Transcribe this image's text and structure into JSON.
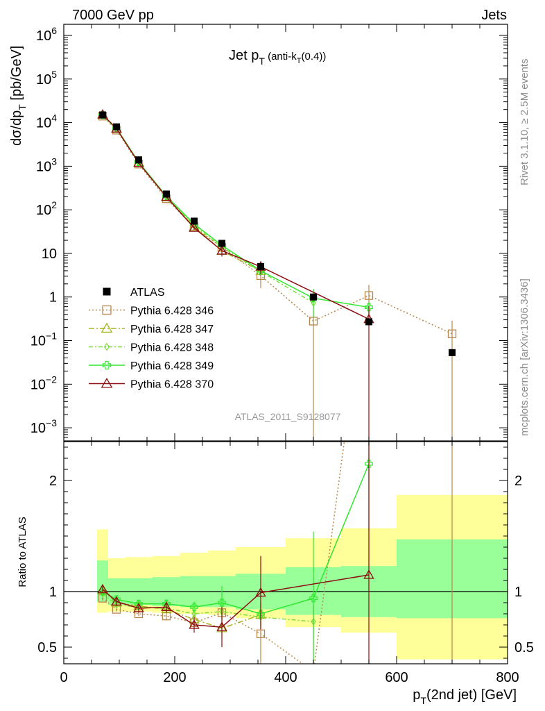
{
  "header": {
    "left": "7000 GeV pp",
    "right": "Jets"
  },
  "side": {
    "rivet": "Rivet 3.1.10, ≥ 2.5M events",
    "mcplots": "mcplots.cern.ch [arXiv:1306.3436]"
  },
  "chart_data": {
    "type": "line",
    "title": {
      "main": "Jet p",
      "sub": "T",
      "paren": " (anti-k",
      "paren_sub": "T",
      "paren_end": "(0.4))"
    },
    "analysis_label": "ATLAS_2011_S9128077",
    "xlabel": {
      "main": "p",
      "sub": "T",
      "rest": "(2nd jet) [GeV]"
    },
    "ylabel_main": {
      "pre": "dσ/dp",
      "sub": "T",
      "post": " [pb/GeV]"
    },
    "ylabel_ratio": "Ratio to ATLAS",
    "x_range": [
      0,
      800
    ],
    "x_ticks": [
      0,
      200,
      400,
      600,
      800
    ],
    "x_tick_labels": [
      "0",
      "200",
      "400",
      "600",
      "800"
    ],
    "main_y_range": [
      0.0005,
      1800000
    ],
    "main_y_scale": "log",
    "main_y_ticks": [
      {
        "value": 0.001,
        "base": "10",
        "exp": "−3"
      },
      {
        "value": 0.01,
        "base": "10",
        "exp": "−2"
      },
      {
        "value": 0.1,
        "base": "10",
        "exp": "−1"
      },
      {
        "value": 1,
        "base": "1",
        "exp": ""
      },
      {
        "value": 10,
        "base": "10",
        "exp": ""
      },
      {
        "value": 100,
        "base": "10",
        "exp": "2"
      },
      {
        "value": 1000,
        "base": "10",
        "exp": "3"
      },
      {
        "value": 10000,
        "base": "10",
        "exp": "4"
      },
      {
        "value": 100000,
        "base": "10",
        "exp": "5"
      },
      {
        "value": 1000000,
        "base": "10",
        "exp": "6"
      }
    ],
    "ratio_y_range": [
      0.35,
      2.35
    ],
    "ratio_y_ticks": [
      0.5,
      1,
      2
    ],
    "ratio_y_tick_labels": [
      "0.5",
      "1",
      "2"
    ],
    "legend_position": "left-middle",
    "data": {
      "name": "ATLAS",
      "x": [
        70,
        95,
        135,
        185,
        235,
        285,
        355,
        450,
        550,
        700
      ],
      "y": [
        15000,
        8000,
        1400,
        230,
        55,
        17,
        5,
        1.0,
        0.27,
        0.053
      ],
      "bins": [
        [
          60,
          80
        ],
        [
          80,
          110
        ],
        [
          110,
          160
        ],
        [
          160,
          210
        ],
        [
          210,
          260
        ],
        [
          260,
          310
        ],
        [
          310,
          400
        ],
        [
          400,
          500
        ],
        [
          500,
          600
        ],
        [
          600,
          800
        ]
      ],
      "band_inner": [
        [
          0.91,
          1.28
        ],
        [
          0.88,
          1.12
        ],
        [
          0.88,
          1.12
        ],
        [
          0.87,
          1.13
        ],
        [
          0.86,
          1.14
        ],
        [
          0.86,
          1.14
        ],
        [
          0.84,
          1.16
        ],
        [
          0.79,
          1.22
        ],
        [
          0.77,
          1.23
        ],
        [
          0.76,
          1.47
        ]
      ],
      "band_outer": [
        [
          0.81,
          1.56
        ],
        [
          0.82,
          1.3
        ],
        [
          0.82,
          1.31
        ],
        [
          0.81,
          1.32
        ],
        [
          0.8,
          1.35
        ],
        [
          0.79,
          1.37
        ],
        [
          0.76,
          1.4
        ],
        [
          0.68,
          1.48
        ],
        [
          0.63,
          1.57
        ],
        [
          0.39,
          1.87
        ]
      ]
    },
    "series": [
      {
        "name": "Pythia 6.428 346",
        "color": "#b8864b",
        "dash": "2,3",
        "marker": "square-open",
        "x": [
          70,
          95,
          135,
          185,
          235,
          285,
          355,
          450,
          550,
          700
        ],
        "ratio": [
          0.94,
          0.84,
          0.8,
          0.78,
          0.72,
          0.81,
          0.62,
          0.28,
          4.0,
          2.7
        ],
        "ratio_err": [
          0.02,
          0.02,
          0.02,
          0.03,
          0.05,
          0.06,
          0.3,
          0.6,
          3.0,
          3.0
        ]
      },
      {
        "name": "Pythia 6.428 347",
        "color": "#a9b520",
        "dash": "8,3,2,3",
        "marker": "triangle-open",
        "x": [
          70,
          95,
          135,
          185,
          235,
          285,
          355
        ],
        "ratio": [
          1.01,
          0.9,
          0.87,
          0.84,
          0.75,
          0.67,
          0.79
        ],
        "ratio_err": [
          0.03,
          0.03,
          0.03,
          0.04,
          0.06,
          0.08,
          0.1
        ]
      },
      {
        "name": "Pythia 6.428 348",
        "color": "#7fdd3a",
        "dash": "6,3,2,3",
        "marker": "diamond-open",
        "x": [
          70,
          95,
          135,
          185,
          235,
          285,
          355,
          450
        ],
        "ratio": [
          0.98,
          0.88,
          0.86,
          0.85,
          0.8,
          0.82,
          0.77,
          0.73
        ],
        "ratio_err": [
          0.03,
          0.03,
          0.03,
          0.04,
          0.05,
          0.07,
          0.1,
          0.15
        ]
      },
      {
        "name": "Pythia 6.428 349",
        "color": "#2ee82e",
        "dash": "",
        "marker": "cross-open",
        "x": [
          70,
          95,
          135,
          185,
          235,
          285,
          355,
          450,
          550
        ],
        "ratio": [
          1.0,
          0.93,
          0.89,
          0.89,
          0.86,
          0.9,
          0.8,
          0.94,
          2.15
        ],
        "ratio_err": [
          0.03,
          0.03,
          0.03,
          0.04,
          0.05,
          0.15,
          0.1,
          0.6,
          0.6
        ]
      },
      {
        "name": "Pythia 6.428 370",
        "color": "#8b0f12",
        "dash": "",
        "marker": "triangle-open",
        "x": [
          70,
          95,
          135,
          185,
          235,
          285,
          355,
          550
        ],
        "ratio": [
          1.02,
          0.91,
          0.85,
          0.86,
          0.7,
          0.68,
          0.99,
          1.15
        ],
        "ratio_err": [
          0.03,
          0.04,
          0.04,
          0.05,
          0.07,
          0.18,
          0.33,
          1.2
        ]
      }
    ]
  }
}
